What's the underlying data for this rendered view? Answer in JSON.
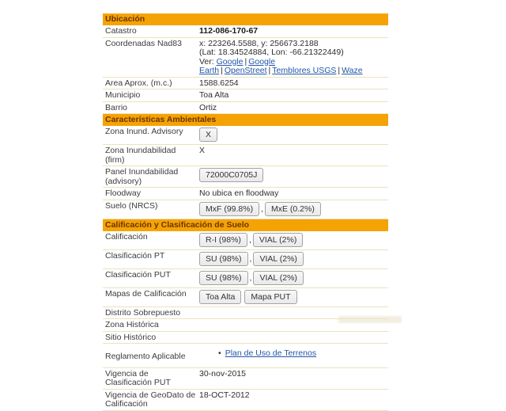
{
  "colors": {
    "section_header_bg": "#F5A304",
    "section_header_text": "#6B3305",
    "row_separator": "#EBE2BD",
    "link": "#2356A8",
    "button_bg": "#EFEFEF",
    "button_border": "#A3A3A3",
    "text": "#333333",
    "page_bg": "#FFFFFF"
  },
  "sections": {
    "ubicacion": {
      "title": "Ubicación"
    },
    "ambientales": {
      "title": "Características Ambientales"
    },
    "calificacion": {
      "title": "Calificación y Clasificación de Suelo"
    }
  },
  "rows": {
    "catastro": {
      "label": "Catastro",
      "value": "112-086-170-67"
    },
    "coordenadas": {
      "label": "Coordenadas Nad83",
      "xy": "x: 223264.5588, y: 256673.2188",
      "latlon": "(Lat: 18.34524884, Lon: -66.21322449)",
      "ver_prefix": "Ver:",
      "link_google": "Google",
      "link_google_earth": "Google Earth",
      "link_openstreet": "OpenStreet",
      "link_temblores": "Temblores USGS",
      "link_waze": "Waze",
      "separator": "|"
    },
    "area": {
      "label": "Area Aprox. (m.c.)",
      "value": "1588.6254"
    },
    "municipio": {
      "label": "Municipio",
      "value": "Toa Alta"
    },
    "barrio": {
      "label": "Barrio",
      "value": "Ortiz"
    },
    "zona_inund_advisory": {
      "label": "Zona Inund. Advisory",
      "button": "X"
    },
    "zona_inund_firm": {
      "label": "Zona Inundabilidad (firm)",
      "value": "X"
    },
    "panel_inundabilidad": {
      "label": "Panel Inundabilidad (advisory)",
      "button": "72000C0705J"
    },
    "floodway": {
      "label": "Floodway",
      "value": "No ubica en floodway"
    },
    "suelo_nrcs": {
      "label": "Suelo (NRCS)",
      "button1": "MxF (99.8%)",
      "button2": "MxE (0.2%)",
      "separator": ","
    },
    "calificacion": {
      "label": "Calificación",
      "button1": "R-I (98%)",
      "button2": "VIAL (2%)",
      "separator": ","
    },
    "clasificacion_pt": {
      "label": "Clasificación PT",
      "button1": "SU (98%)",
      "button2": "VIAL (2%)",
      "separator": ","
    },
    "clasificacion_put": {
      "label": "Clasificación PUT",
      "button1": "SU (98%)",
      "button2": "VIAL (2%)",
      "separator": ","
    },
    "mapas_calificacion": {
      "label": "Mapas de Calificación",
      "button1": "Toa Alta",
      "button2": "Mapa PUT"
    },
    "distrito_sobrepuesto": {
      "label": "Distrito Sobrepuesto"
    },
    "zona_historica": {
      "label": "Zona Histórica"
    },
    "sitio_historico": {
      "label": "Sitio Histórico"
    },
    "reglamento": {
      "label": "Reglamento Aplicable",
      "bullet": "•",
      "link": "Plan de Uso de Terrenos"
    },
    "vigencia_put": {
      "label": "Vigencia de Clasificación PUT",
      "value": "30-nov-2015"
    },
    "vigencia_geodato": {
      "label": "Vigencia de GeoDato de Calificación",
      "value": "18-OCT-2012"
    }
  }
}
